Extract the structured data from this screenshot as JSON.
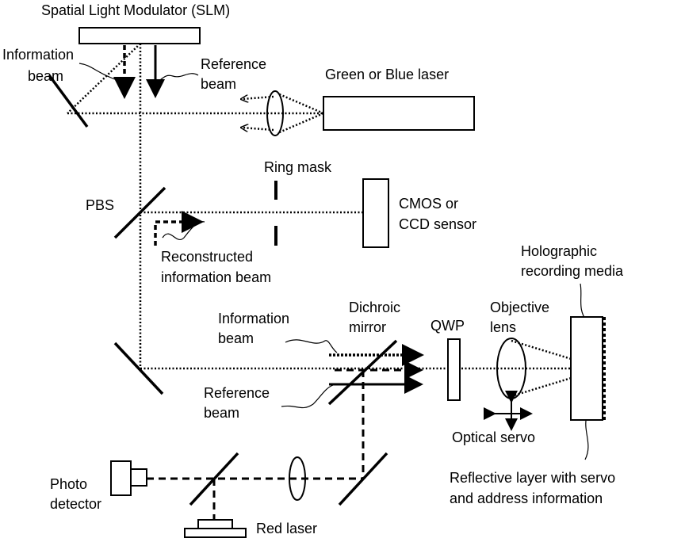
{
  "labels": {
    "slm": "Spatial Light Modulator (SLM)",
    "info_beam_top": [
      "Information",
      "beam"
    ],
    "ref_beam_top": [
      "Reference",
      "beam"
    ],
    "laser": "Green or Blue laser",
    "pbs": "PBS",
    "ring_mask": "Ring mask",
    "sensor": [
      "CMOS or",
      "CCD sensor"
    ],
    "reconstructed": [
      "Reconstructed",
      "information beam"
    ],
    "media": [
      "Holographic",
      "recording media"
    ],
    "dichroic": [
      "Dichroic",
      "mirror"
    ],
    "info_beam_bottom": [
      "Information",
      "beam"
    ],
    "qwp": "QWP",
    "objective": [
      "Objective",
      "lens"
    ],
    "ref_beam_bottom": [
      "Reference",
      "beam"
    ],
    "servo": "Optical servo",
    "photo": [
      "Photo",
      "detector"
    ],
    "reflective": [
      "Reflective layer with servo",
      "and address information"
    ],
    "red_laser": "Red laser"
  }
}
